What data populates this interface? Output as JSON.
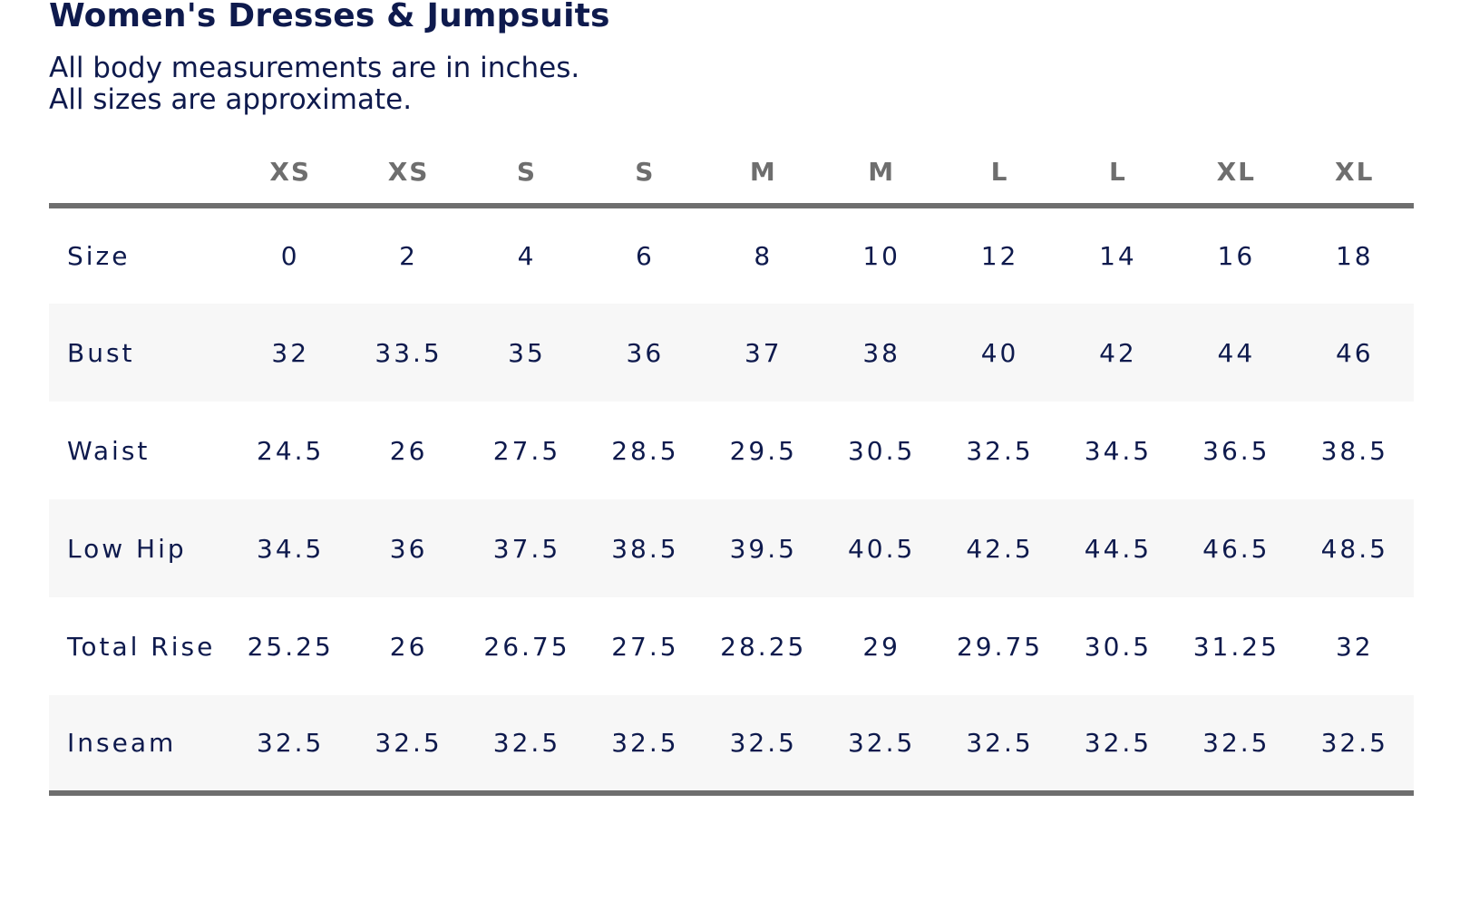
{
  "title": "Women's Dresses & Jumpsuits",
  "intro": {
    "line1": "All body measurements are in inches.",
    "line2": "All sizes are approximate."
  },
  "table": {
    "header": [
      "",
      "XS",
      "XS",
      "S",
      "S",
      "M",
      "M",
      "L",
      "L",
      "XL",
      "XL"
    ],
    "rows": [
      {
        "label": "Size",
        "values": [
          "0",
          "2",
          "4",
          "6",
          "8",
          "10",
          "12",
          "14",
          "16",
          "18"
        ]
      },
      {
        "label": "Bust",
        "values": [
          "32",
          "33.5",
          "35",
          "36",
          "37",
          "38",
          "40",
          "42",
          "44",
          "46"
        ]
      },
      {
        "label": "Waist",
        "values": [
          "24.5",
          "26",
          "27.5",
          "28.5",
          "29.5",
          "30.5",
          "32.5",
          "34.5",
          "36.5",
          "38.5"
        ]
      },
      {
        "label": "Low Hip",
        "values": [
          "34.5",
          "36",
          "37.5",
          "38.5",
          "39.5",
          "40.5",
          "42.5",
          "44.5",
          "46.5",
          "48.5"
        ]
      },
      {
        "label": "Total Rise",
        "values": [
          "25.25",
          "26",
          "26.75",
          "27.5",
          "28.25",
          "29",
          "29.75",
          "30.5",
          "31.25",
          "32"
        ]
      },
      {
        "label": "Inseam",
        "values": [
          "32.5",
          "32.5",
          "32.5",
          "32.5",
          "32.5",
          "32.5",
          "32.5",
          "32.5",
          "32.5",
          "32.5"
        ]
      }
    ]
  },
  "colors": {
    "text": "#0e1a4d",
    "header_text": "#6e6e6e",
    "rule": "#6e6e6e",
    "stripe": "#f7f7f7",
    "background": "#ffffff"
  }
}
